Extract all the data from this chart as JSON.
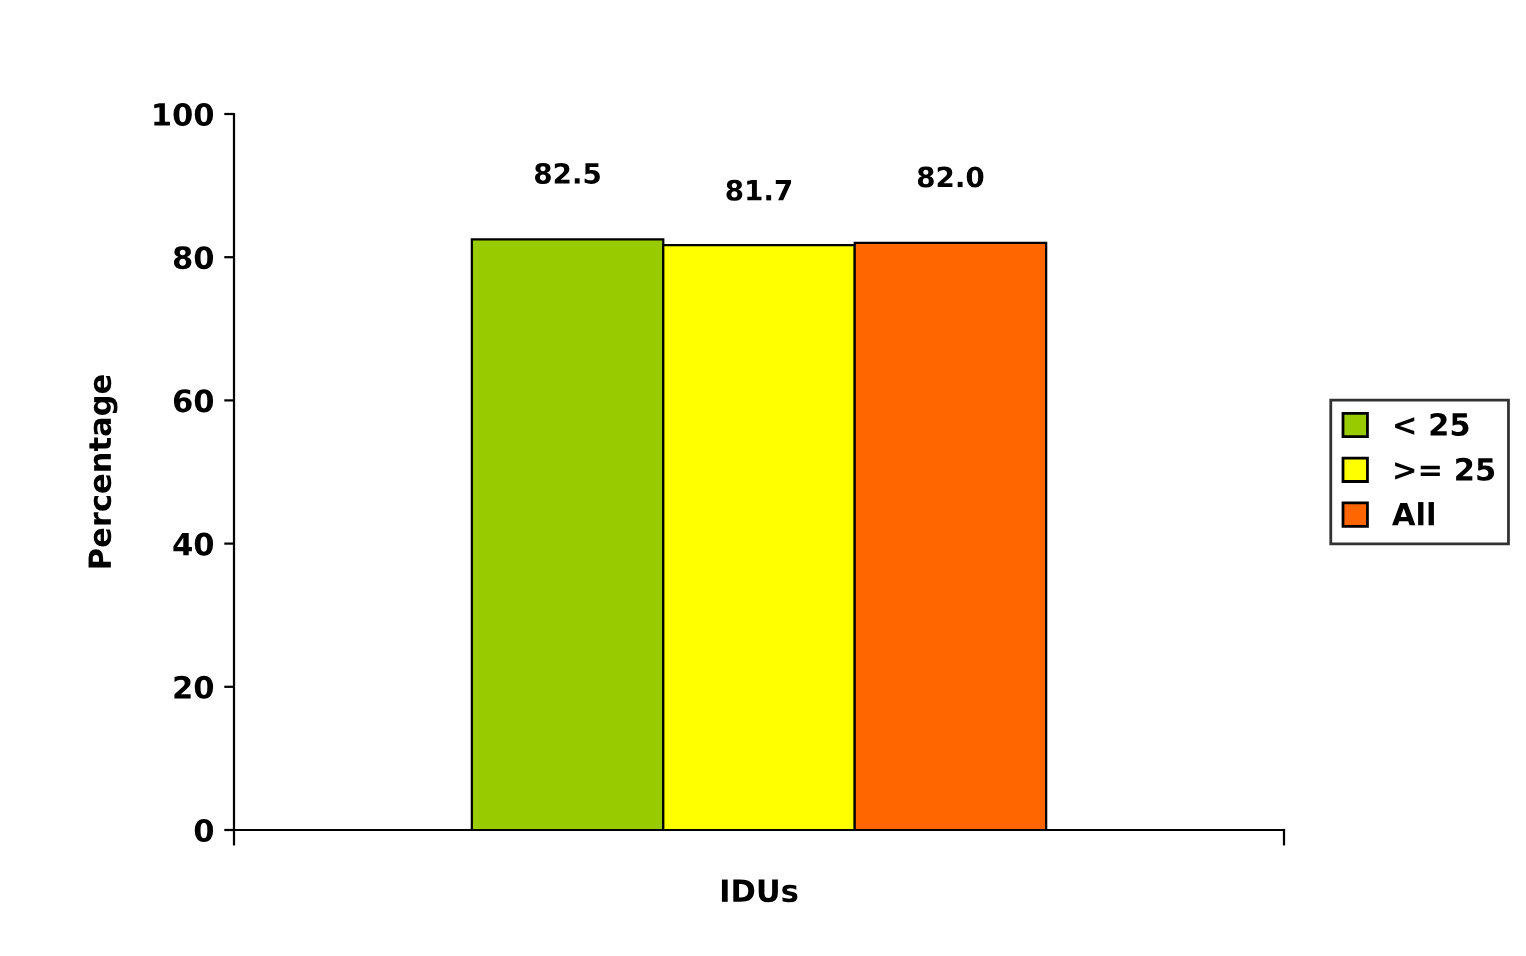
{
  "chart_data": {
    "type": "bar",
    "ylabel": "Percentage",
    "xlabel": "IDUs",
    "categories": [
      null
    ],
    "series": [
      {
        "name": "< 25",
        "color": "#99cc00",
        "values": [
          82.5
        ],
        "value_labels": [
          "82.5"
        ]
      },
      {
        "name": ">= 25",
        "color": "#ffff00",
        "values": [
          81.7
        ],
        "value_labels": [
          "81.7"
        ]
      },
      {
        "name": "All",
        "color": "#ff6600",
        "values": [
          82.0
        ],
        "value_labels": [
          "82.0"
        ]
      }
    ],
    "ylim": [
      0,
      100
    ],
    "yticks": [
      0,
      20,
      40,
      60,
      80,
      100
    ],
    "legend": "right",
    "grid": false
  }
}
